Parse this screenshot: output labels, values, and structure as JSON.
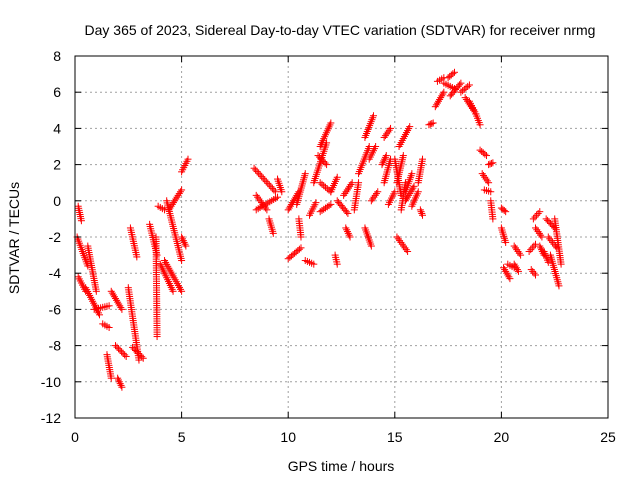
{
  "chart_data": {
    "type": "scatter",
    "title": "Day 365 of 2023, Sidereal Day-to-day VTEC variation (SDTVAR) for receiver nrmg",
    "xlabel": "GPS time / hours",
    "ylabel": "SDTVAR / TECUs",
    "xlim": [
      0,
      25
    ],
    "ylim": [
      -12,
      8
    ],
    "xticks": [
      0,
      5,
      10,
      15,
      20,
      25
    ],
    "yticks": [
      -12,
      -10,
      -8,
      -6,
      -4,
      -2,
      0,
      2,
      4,
      6,
      8
    ],
    "grid": true,
    "marker": "+",
    "color": "#ff0000",
    "series": [
      {
        "name": "SDTVAR",
        "segments": [
          [
            0.15,
            -0.3,
            0.3,
            -1.1
          ],
          [
            0.1,
            -2.0,
            0.6,
            -3.6
          ],
          [
            0.6,
            -2.5,
            1.0,
            -5.0
          ],
          [
            0.15,
            -4.2,
            0.5,
            -5.0
          ],
          [
            0.5,
            -4.8,
            1.15,
            -6.3
          ],
          [
            0.9,
            -6.0,
            1.6,
            -5.8
          ],
          [
            1.3,
            -6.8,
            1.6,
            -7.0
          ],
          [
            1.5,
            -8.5,
            1.7,
            -9.8
          ],
          [
            1.7,
            -5.0,
            2.2,
            -6.0
          ],
          [
            1.9,
            -8.0,
            2.4,
            -8.6
          ],
          [
            2.0,
            -9.8,
            2.2,
            -10.3
          ],
          [
            2.6,
            -1.5,
            2.9,
            -3.1
          ],
          [
            2.5,
            -4.8,
            3.0,
            -8.8
          ],
          [
            2.7,
            -8.1,
            3.2,
            -8.7
          ],
          [
            3.5,
            -1.3,
            3.85,
            -3.0
          ],
          [
            3.9,
            -0.3,
            4.2,
            -0.5
          ],
          [
            4.0,
            -3.5,
            4.6,
            -5.0
          ],
          [
            4.2,
            -3.3,
            5.0,
            -5.0
          ],
          [
            3.8,
            -2.0,
            3.85,
            -7.5
          ],
          [
            4.4,
            -0.5,
            5.0,
            0.6
          ],
          [
            4.3,
            0.0,
            5.0,
            -3.3
          ],
          [
            5.0,
            -2.0,
            5.2,
            -2.5
          ],
          [
            5.0,
            1.6,
            5.3,
            2.3
          ],
          [
            8.4,
            1.8,
            9.4,
            0.5
          ],
          [
            8.5,
            -0.5,
            9.5,
            0.2
          ],
          [
            8.5,
            0.3,
            9.0,
            -0.5
          ],
          [
            9.1,
            -1.0,
            9.3,
            -1.8
          ],
          [
            9.5,
            1.2,
            9.7,
            0.5
          ],
          [
            10.0,
            -3.2,
            10.6,
            -2.6
          ],
          [
            10.0,
            -0.5,
            10.5,
            0.5
          ],
          [
            10.5,
            -1.0,
            10.6,
            -2.0
          ],
          [
            10.4,
            -0.2,
            10.8,
            1.5
          ],
          [
            10.8,
            -3.3,
            11.2,
            -3.5
          ],
          [
            11.0,
            -0.8,
            11.3,
            -0.1
          ],
          [
            11.2,
            1.0,
            11.8,
            3.2
          ],
          [
            11.5,
            3.0,
            12.0,
            4.3
          ],
          [
            11.4,
            2.5,
            11.8,
            2.0
          ],
          [
            11.5,
            1.0,
            12.0,
            0.5
          ],
          [
            11.5,
            -0.6,
            12.0,
            -0.2
          ],
          [
            12.0,
            0.5,
            12.3,
            1.3
          ],
          [
            12.2,
            -3.0,
            12.3,
            -3.5
          ],
          [
            12.3,
            0.0,
            12.8,
            -0.7
          ],
          [
            12.6,
            0.3,
            13.0,
            1.0
          ],
          [
            12.7,
            -1.5,
            12.9,
            -2.0
          ],
          [
            13.1,
            -0.5,
            13.3,
            1.0
          ],
          [
            13.3,
            1.5,
            13.8,
            3.0
          ],
          [
            13.6,
            -1.5,
            13.9,
            -2.5
          ],
          [
            13.6,
            3.5,
            14.0,
            4.7
          ],
          [
            13.8,
            2.3,
            14.1,
            3.0
          ],
          [
            13.9,
            0.0,
            14.2,
            0.5
          ],
          [
            14.4,
            2.0,
            14.6,
            2.5
          ],
          [
            14.5,
            3.5,
            14.8,
            4.0
          ],
          [
            14.5,
            1.0,
            14.8,
            2.3
          ],
          [
            14.7,
            -0.2,
            15.0,
            0.5
          ],
          [
            15.0,
            2.3,
            15.3,
            0.3
          ],
          [
            15.1,
            1.0,
            15.4,
            2.5
          ],
          [
            15.1,
            -2.0,
            15.6,
            -2.8
          ],
          [
            15.2,
            3.0,
            15.7,
            4.1
          ],
          [
            15.3,
            -0.5,
            15.5,
            1.0
          ],
          [
            15.5,
            0.5,
            15.8,
            1.5
          ],
          [
            15.5,
            0.0,
            15.9,
            0.8
          ],
          [
            15.8,
            -0.3,
            16.1,
            0.5
          ],
          [
            16.1,
            1.0,
            16.3,
            2.3
          ],
          [
            16.2,
            -0.5,
            16.3,
            -0.8
          ],
          [
            16.6,
            4.2,
            16.8,
            4.3
          ],
          [
            16.9,
            5.2,
            17.3,
            6.0
          ],
          [
            17.0,
            6.6,
            17.3,
            6.8
          ],
          [
            17.3,
            6.5,
            17.8,
            6.2
          ],
          [
            17.5,
            6.8,
            17.8,
            7.1
          ],
          [
            17.6,
            5.8,
            18.1,
            6.5
          ],
          [
            18.1,
            6.0,
            18.5,
            6.4
          ],
          [
            18.3,
            5.7,
            18.7,
            5.0
          ],
          [
            18.5,
            5.5,
            18.8,
            4.8
          ],
          [
            18.8,
            4.8,
            19.0,
            4.2
          ],
          [
            19.0,
            2.8,
            19.3,
            2.5
          ],
          [
            19.1,
            1.5,
            19.4,
            1.0
          ],
          [
            19.2,
            0.6,
            19.5,
            0.5
          ],
          [
            19.4,
            2.0,
            19.6,
            2.1
          ],
          [
            19.5,
            0.0,
            19.6,
            -1.0
          ],
          [
            20.0,
            -0.4,
            20.2,
            -0.6
          ],
          [
            20.0,
            -1.5,
            20.2,
            -2.3
          ],
          [
            20.1,
            -3.7,
            20.4,
            -4.3
          ],
          [
            20.3,
            -3.5,
            20.6,
            -3.7
          ],
          [
            20.6,
            -2.5,
            20.9,
            -3.0
          ],
          [
            20.6,
            -3.5,
            20.8,
            -3.9
          ],
          [
            21.3,
            -2.8,
            21.6,
            -2.4
          ],
          [
            21.4,
            -3.8,
            21.6,
            -4.1
          ],
          [
            21.5,
            -1.0,
            21.8,
            -0.6
          ],
          [
            21.6,
            -1.5,
            21.9,
            -2.0
          ],
          [
            21.8,
            -2.5,
            22.0,
            -3.0
          ],
          [
            22.0,
            -2.8,
            22.2,
            -3.4
          ],
          [
            22.1,
            -1.0,
            22.5,
            -1.5
          ],
          [
            22.2,
            -2.0,
            22.6,
            -2.6
          ],
          [
            22.3,
            -3.0,
            22.7,
            -4.7
          ],
          [
            22.5,
            -1.0,
            22.8,
            -3.5
          ]
        ]
      }
    ]
  }
}
